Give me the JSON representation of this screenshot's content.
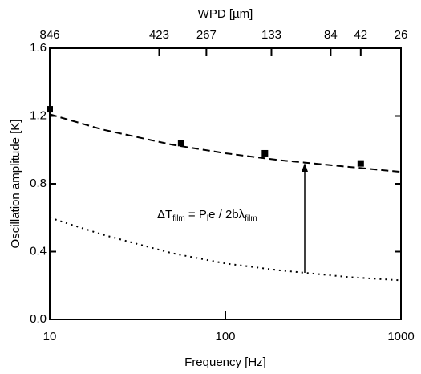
{
  "chart_data": {
    "type": "line",
    "xlabel": "Frequency [Hz]",
    "ylabel": "Oscillation amplitude [K]",
    "x2label": "WPD [µm]",
    "xscale": "log",
    "xlim": [
      10,
      1000
    ],
    "ylim": [
      0,
      1.6
    ],
    "xticks": [
      10,
      100,
      1000
    ],
    "yticks": [
      {
        "value": 0,
        "label": "0.0"
      },
      0.4,
      0.8,
      1.2,
      1.6
    ],
    "x2ticks": [
      {
        "value": 10,
        "label": "846"
      },
      {
        "value": 42,
        "label": "423"
      },
      {
        "value": 78,
        "label": "267"
      },
      {
        "value": 183,
        "label": "133"
      },
      {
        "value": 398,
        "label": "84"
      },
      {
        "value": 590,
        "label": "42"
      },
      {
        "value": 1000,
        "label": "26"
      }
    ],
    "series": [
      {
        "style": "square",
        "color": "#000",
        "x": [
          10,
          56,
          168,
          590
        ],
        "values": [
          1.24,
          1.04,
          0.98,
          0.92
        ]
      },
      {
        "style": "dashed",
        "color": "#000",
        "x": [
          10,
          20,
          50,
          100,
          200,
          500,
          1000
        ],
        "values": [
          1.21,
          1.12,
          1.03,
          0.98,
          0.94,
          0.9,
          0.87
        ]
      },
      {
        "style": "dotted",
        "color": "#000",
        "x": [
          10,
          20,
          50,
          100,
          200,
          500,
          1000
        ],
        "values": [
          0.6,
          0.5,
          0.39,
          0.33,
          0.29,
          0.25,
          0.23
        ]
      }
    ],
    "annotation": [
      "ΔT",
      "film",
      " = P",
      "l",
      "e / 2bλ",
      "film"
    ]
  }
}
